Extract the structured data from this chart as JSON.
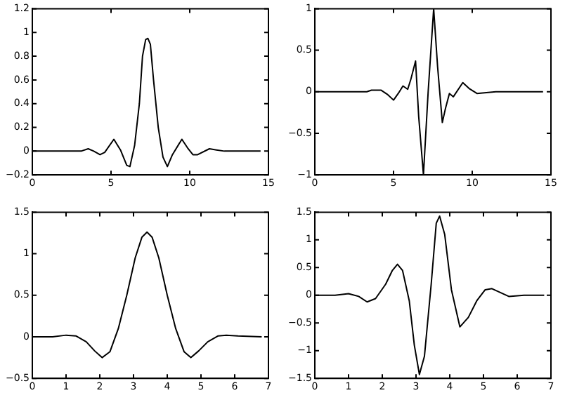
{
  "chart_data": [
    {
      "type": "line",
      "xlim": [
        0,
        15
      ],
      "ylim": [
        -0.2,
        1.2
      ],
      "xticks": [
        0,
        5,
        10,
        15
      ],
      "yticks": [
        {
          "value": -0.2,
          "label": "−0.2"
        },
        0,
        0.2,
        0.4,
        0.6,
        0.8,
        1,
        1.2
      ],
      "series": [
        {
          "color": "#000000",
          "x": [
            0,
            2.5,
            3.1,
            3.55,
            3.9,
            4.3,
            4.6,
            5.18,
            5.6,
            6.0,
            6.2,
            6.5,
            6.8,
            7.0,
            7.2,
            7.34,
            7.5,
            7.7,
            8.0,
            8.3,
            8.58,
            8.9,
            9.5,
            9.9,
            10.2,
            10.5,
            11.25,
            11.7,
            12.2,
            14.5
          ],
          "values": [
            0,
            0,
            0,
            0.02,
            0,
            -0.03,
            -0.01,
            0.1,
            0.01,
            -0.12,
            -0.13,
            0.05,
            0.4,
            0.8,
            0.94,
            0.95,
            0.9,
            0.6,
            0.2,
            -0.05,
            -0.13,
            -0.03,
            0.1,
            0.02,
            -0.03,
            -0.03,
            0.02,
            0.01,
            0,
            0
          ]
        }
      ]
    },
    {
      "type": "line",
      "xlim": [
        0,
        15
      ],
      "ylim": [
        -1,
        1
      ],
      "xticks": [
        0,
        5,
        10,
        15
      ],
      "yticks": [
        {
          "value": -1,
          "label": "−1"
        },
        {
          "value": -0.5,
          "label": "−0.5"
        },
        0,
        0.5,
        1
      ],
      "series": [
        {
          "color": "#000000",
          "x": [
            0,
            3.3,
            3.6,
            4.2,
            4.6,
            5.0,
            5.3,
            5.6,
            5.9,
            6.1,
            6.4,
            6.6,
            6.9,
            7.2,
            7.55,
            7.8,
            8.1,
            8.3,
            8.55,
            8.8,
            9.4,
            9.8,
            10.3,
            11.5,
            14.5
          ],
          "values": [
            0,
            0,
            0.02,
            0.02,
            -0.03,
            -0.1,
            -0.02,
            0.07,
            0.03,
            0.15,
            0.37,
            -0.3,
            -1,
            0,
            1,
            0.3,
            -0.37,
            -0.2,
            -0.02,
            -0.06,
            0.11,
            0.04,
            -0.02,
            0,
            0
          ]
        }
      ]
    },
    {
      "type": "line",
      "xlim": [
        0,
        7
      ],
      "ylim": [
        -0.5,
        1.5
      ],
      "xticks": [
        0,
        1,
        2,
        3,
        4,
        5,
        6,
        7
      ],
      "yticks": [
        {
          "value": -0.5,
          "label": "−0.5"
        },
        0,
        0.5,
        1,
        1.5
      ],
      "series": [
        {
          "color": "#000000",
          "x": [
            0,
            0.6,
            1,
            1.3,
            1.6,
            1.85,
            2.07,
            2.3,
            2.55,
            2.8,
            3.05,
            3.25,
            3.4,
            3.55,
            3.75,
            4.0,
            4.25,
            4.5,
            4.7,
            4.93,
            5.2,
            5.5,
            5.75,
            6.1,
            6.8
          ],
          "values": [
            0,
            0,
            0.02,
            0.01,
            -0.06,
            -0.17,
            -0.25,
            -0.18,
            0.1,
            0.5,
            0.95,
            1.2,
            1.26,
            1.2,
            0.95,
            0.5,
            0.1,
            -0.18,
            -0.25,
            -0.17,
            -0.06,
            0.01,
            0.02,
            0.01,
            0
          ]
        }
      ]
    },
    {
      "type": "line",
      "xlim": [
        0,
        7
      ],
      "ylim": [
        -1.5,
        1.5
      ],
      "xticks": [
        0,
        1,
        2,
        3,
        4,
        5,
        6,
        7
      ],
      "yticks": [
        {
          "value": -1.5,
          "label": "−1.5"
        },
        {
          "value": -1,
          "label": "−1"
        },
        {
          "value": -0.5,
          "label": "−0.5"
        },
        0,
        0.5,
        1,
        1.5
      ],
      "series": [
        {
          "color": "#000000",
          "x": [
            0,
            0.6,
            1.0,
            1.3,
            1.55,
            1.8,
            2.1,
            2.3,
            2.45,
            2.6,
            2.8,
            2.95,
            3.1,
            3.25,
            3.45,
            3.6,
            3.7,
            3.85,
            4.05,
            4.3,
            4.55,
            4.8,
            5.05,
            5.25,
            5.5,
            5.75,
            6.2,
            6.8
          ],
          "values": [
            0,
            0,
            0.03,
            -0.02,
            -0.12,
            -0.06,
            0.2,
            0.45,
            0.56,
            0.45,
            -0.1,
            -0.9,
            -1.43,
            -1.1,
            0.2,
            1.3,
            1.43,
            1.1,
            0.1,
            -0.57,
            -0.4,
            -0.1,
            0.1,
            0.12,
            0.05,
            -0.02,
            0,
            0
          ]
        }
      ]
    }
  ]
}
